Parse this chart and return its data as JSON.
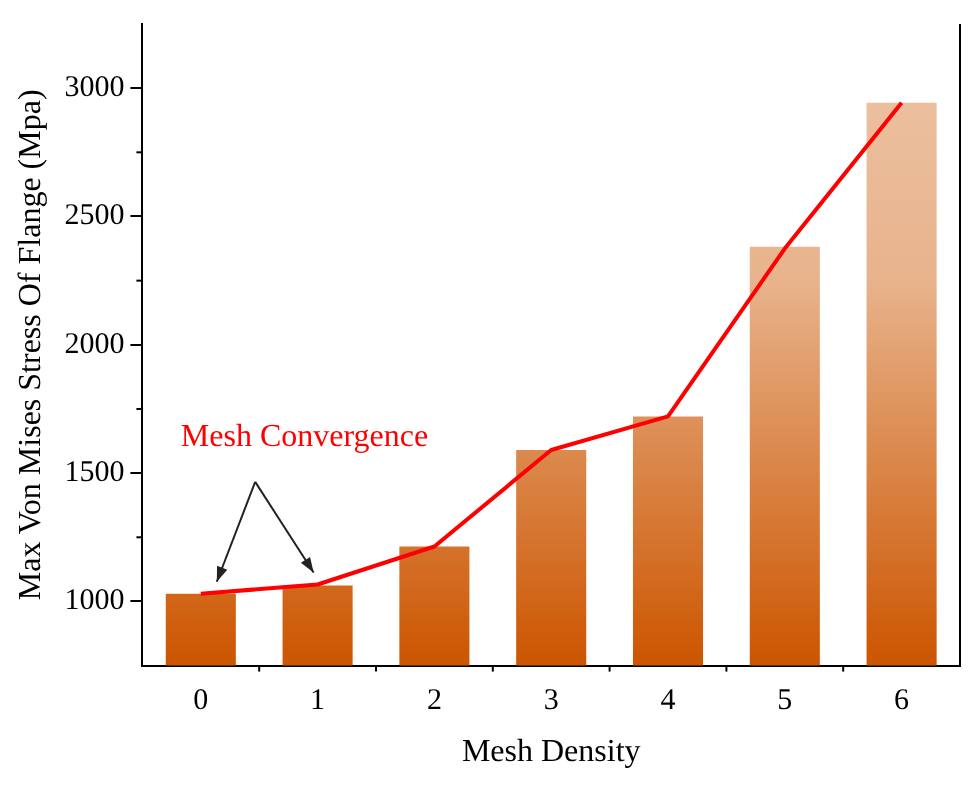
{
  "chart_data": {
    "type": "bar",
    "xlabel": "Mesh Density",
    "ylabel": "Max Von Mises Stress Of Flange (Mpa)",
    "categories": [
      "0",
      "1",
      "2",
      "3",
      "4",
      "5",
      "6"
    ],
    "series": [
      {
        "color": "#cc5500",
        "values": [
          1030,
          1062,
          1214,
          1590,
          1721,
          2382,
          2943
        ]
      },
      {
        "type": "line",
        "color": "#ff0000",
        "values": [
          1030,
          1066,
          1214,
          1590,
          1721,
          2375,
          2943
        ]
      }
    ],
    "ylim": [
      750,
      3250
    ],
    "yticks": [
      1000,
      1500,
      2000,
      2500,
      3000
    ],
    "annotations": [
      "Mesh Convergence"
    ],
    "grid": false,
    "legend": false,
    "marker": "none",
    "line_style": "solid"
  }
}
